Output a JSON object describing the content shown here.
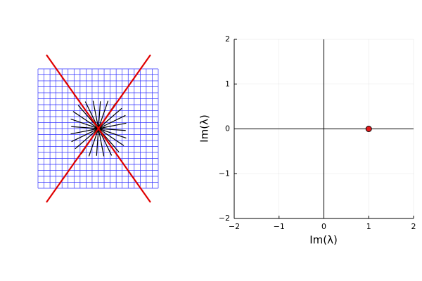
{
  "chart_data": {
    "type": "scatter",
    "xlabel": "Im(λ)",
    "ylabel": "Im(λ)",
    "x": [
      1
    ],
    "values": [
      0
    ],
    "color": "#e41a1c",
    "xlim": [
      -2,
      2
    ],
    "ylim": [
      -2,
      2
    ],
    "xticks": [
      {
        "value": -2,
        "label": "−2"
      },
      {
        "value": -1,
        "label": "−1"
      },
      0,
      1,
      2
    ],
    "yticks": [
      {
        "value": -2,
        "label": "−2"
      },
      {
        "value": -1,
        "label": "−1"
      },
      0,
      1,
      2
    ],
    "grid": true,
    "zero_lines": true
  }
}
